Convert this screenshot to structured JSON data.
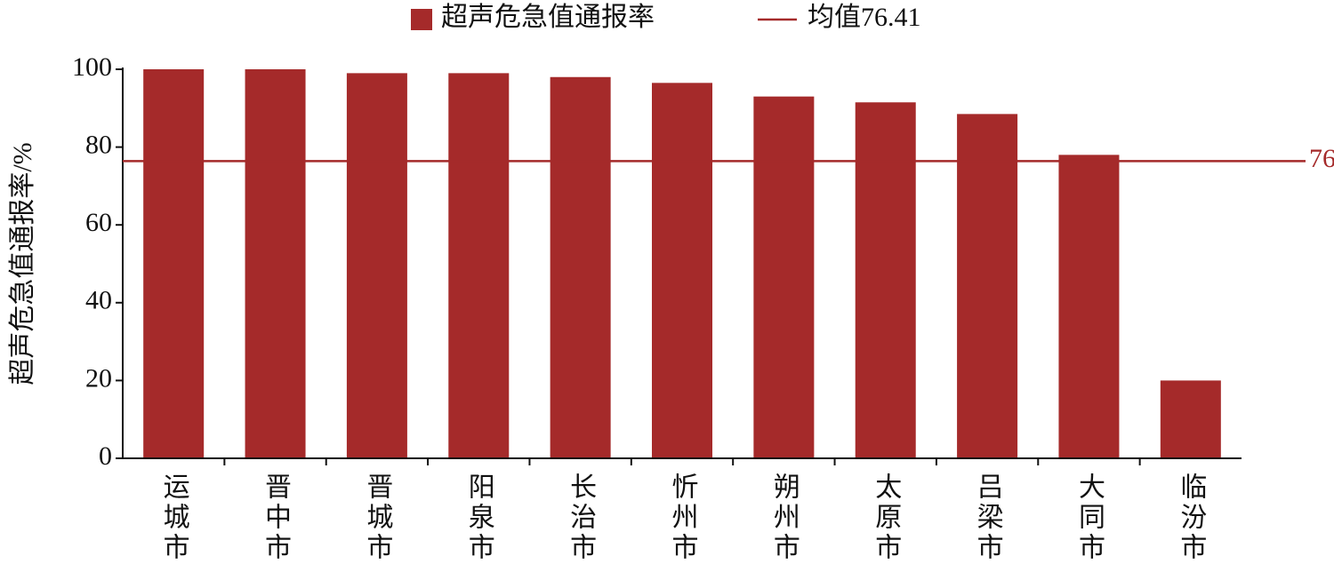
{
  "chart_data": {
    "type": "bar",
    "y_label": "超声危急值通报率/%",
    "categories": [
      "运城市",
      "晋中市",
      "晋城市",
      "阳泉市",
      "长治市",
      "忻州市",
      "朔州市",
      "太原市",
      "吕梁市",
      "大同市",
      "临汾市"
    ],
    "series": [
      {
        "name": "超声危急值通报率",
        "color": "#a52a2a",
        "values": [
          100,
          100,
          99,
          99,
          98,
          96.5,
          93,
          91.5,
          88.5,
          78,
          20
        ]
      }
    ],
    "mean": {
      "name": "均值76.41",
      "value": 76.41,
      "color": "#a52a2a"
    },
    "ylim": [
      0,
      100
    ],
    "yticks": [
      0,
      20,
      40,
      60,
      80,
      100
    ]
  }
}
